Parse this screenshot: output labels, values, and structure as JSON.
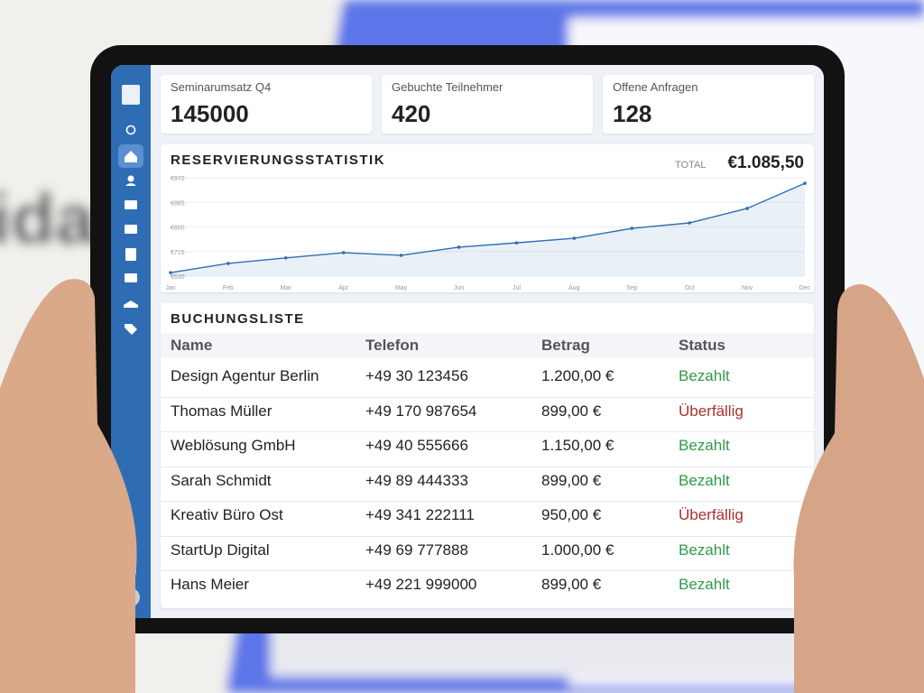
{
  "kpis": [
    {
      "label": "Seminarumsatz Q4",
      "value": "145000"
    },
    {
      "label": "Gebuchte Teilnehmer",
      "value": "420"
    },
    {
      "label": "Offene Anfragen",
      "value": "128"
    }
  ],
  "chart_data": {
    "type": "line",
    "title": "RESERVIERUNGSSTATISTIK",
    "total_label": "TOTAL",
    "total_value": "€1.085,50",
    "categories": [
      "Jan",
      "Feb",
      "Mar",
      "Apr",
      "May",
      "Jun",
      "Jul",
      "Aug",
      "Sep",
      "Oct",
      "Nov",
      "Dec"
    ],
    "values": [
      642,
      674,
      693,
      711,
      702,
      730,
      745,
      761,
      795,
      814,
      864,
      951
    ],
    "color": "#2f6fb0",
    "ylim": [
      630,
      970
    ],
    "yticks": [
      {
        "value": 630,
        "label": "€630"
      },
      {
        "value": 715,
        "label": "€715"
      },
      {
        "value": 800,
        "label": "€800"
      },
      {
        "value": 885,
        "label": "€885"
      },
      {
        "value": 970,
        "label": "€970"
      }
    ],
    "grid": true
  },
  "table": {
    "title": "BUCHUNGSLISTE",
    "header": [
      "Name",
      "Telefon",
      "Betrag",
      "Status"
    ],
    "rows": [
      [
        "Design Agentur Berlin",
        "+49 30 123456",
        "1.200,00 €",
        "Bezahlt"
      ],
      [
        "Thomas Müller",
        "+49 170 987654",
        "899,00 €",
        "Überfällig"
      ],
      [
        "Weblösung GmbH",
        "+49 40 555666",
        "1.150,00 €",
        "Bezahlt"
      ],
      [
        "Sarah Schmidt",
        "+49 89 444333",
        "899,00 €",
        "Bezahlt"
      ],
      [
        "Kreativ Büro Ost",
        "+49 341 222111",
        "950,00 €",
        "Überfällig"
      ],
      [
        "StartUp Digital",
        "+49 69 777888",
        "1.000,00 €",
        "Bezahlt"
      ],
      [
        "Hans Meier",
        "+49 221 999000",
        "899,00 €",
        "Bezahlt"
      ]
    ],
    "status_colors": [
      "#2e9a47",
      "#a8322f",
      "#2e9a47",
      "#2e9a47",
      "#a8322f",
      "#2e9a47",
      "#2e9a47"
    ]
  }
}
